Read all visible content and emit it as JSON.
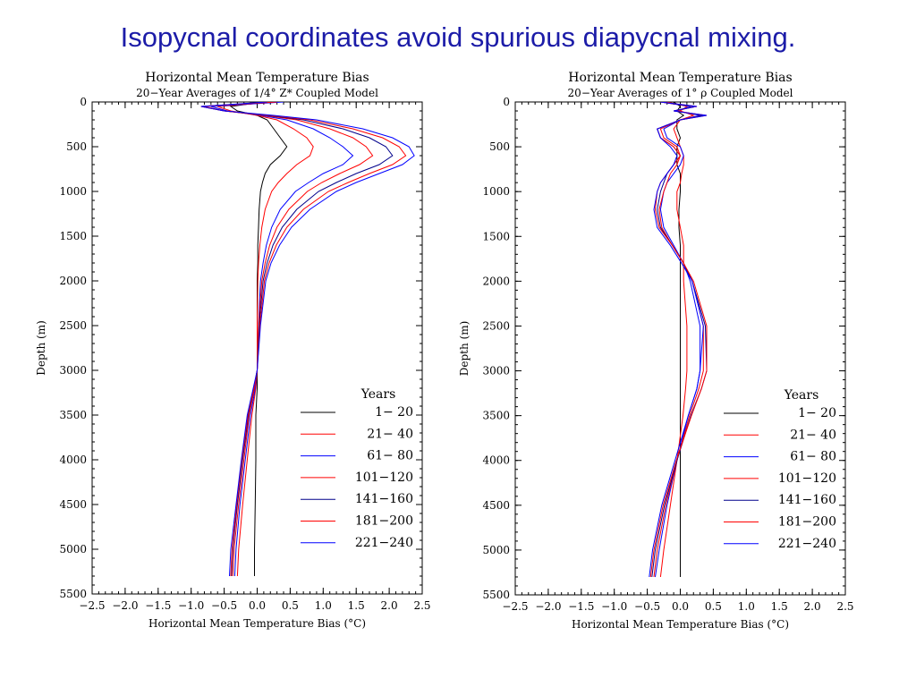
{
  "page": {
    "title": "Isopycnal coordinates avoid spurious diapycnal mixing."
  },
  "chart_data": [
    {
      "type": "line",
      "title": "Horizontal Mean Temperature Bias",
      "subtitle": "20−Year Averages of 1/4° Z* Coupled Model",
      "xlabel": "Horizontal Mean Temperature Bias (°C)",
      "ylabel": "Depth (m)",
      "xlim": [
        -2.5,
        2.5
      ],
      "ylim": [
        5500,
        0
      ],
      "xticks": [
        "−2.5",
        "−2.0",
        "−1.5",
        "−1.0",
        "−0.5",
        "0.0",
        "0.5",
        "1.0",
        "1.5",
        "2.0",
        "2.5"
      ],
      "yticks": [
        "0",
        "500",
        "1000",
        "1500",
        "2000",
        "2500",
        "3000",
        "3500",
        "4000",
        "4500",
        "5000",
        "5500"
      ],
      "legend": {
        "title": "Years",
        "position": "bottom-right"
      },
      "depth": [
        0,
        50,
        100,
        150,
        200,
        300,
        400,
        500,
        600,
        700,
        800,
        900,
        1000,
        1200,
        1400,
        1600,
        1800,
        2000,
        2500,
        3000,
        3200,
        3500,
        4000,
        4500,
        5000,
        5300
      ],
      "series": [
        {
          "name": "1− 20",
          "color": "#000000",
          "values": [
            0.1,
            -0.4,
            -0.3,
            0.0,
            0.15,
            0.25,
            0.35,
            0.45,
            0.35,
            0.2,
            0.12,
            0.08,
            0.05,
            0.03,
            0.02,
            0.01,
            0.01,
            0.0,
            0.0,
            0.0,
            0.0,
            -0.02,
            -0.02,
            -0.03,
            -0.04,
            -0.04
          ]
        },
        {
          "name": "21− 40",
          "color": "#ff0000",
          "values": [
            0.3,
            -0.6,
            -0.4,
            0.0,
            0.3,
            0.55,
            0.75,
            0.85,
            0.8,
            0.6,
            0.45,
            0.32,
            0.22,
            0.12,
            0.07,
            0.04,
            0.02,
            0.01,
            0.0,
            0.0,
            -0.02,
            -0.08,
            -0.15,
            -0.22,
            -0.28,
            -0.3
          ]
        },
        {
          "name": "61− 80",
          "color": "#0000ff",
          "values": [
            0.4,
            -0.7,
            -0.45,
            0.05,
            0.45,
            0.85,
            1.1,
            1.3,
            1.45,
            1.3,
            1.0,
            0.78,
            0.58,
            0.35,
            0.22,
            0.14,
            0.09,
            0.05,
            0.02,
            0.0,
            -0.03,
            -0.1,
            -0.18,
            -0.26,
            -0.32,
            -0.34
          ]
        },
        {
          "name": "101−120",
          "color": "#ff0000",
          "values": [
            0.3,
            -0.8,
            -0.5,
            0.1,
            0.6,
            1.1,
            1.45,
            1.65,
            1.75,
            1.55,
            1.25,
            0.98,
            0.76,
            0.48,
            0.3,
            0.19,
            0.12,
            0.07,
            0.02,
            0.0,
            -0.04,
            -0.12,
            -0.2,
            -0.28,
            -0.35,
            -0.37
          ]
        },
        {
          "name": "141−160",
          "color": "#00008b",
          "values": [
            0.2,
            -0.85,
            -0.5,
            0.15,
            0.7,
            1.3,
            1.7,
            1.95,
            2.05,
            1.85,
            1.5,
            1.2,
            0.93,
            0.6,
            0.38,
            0.24,
            0.15,
            0.09,
            0.03,
            0.0,
            -0.05,
            -0.13,
            -0.22,
            -0.3,
            -0.37,
            -0.39
          ]
        },
        {
          "name": "181−200",
          "color": "#ff0000",
          "values": [
            0.2,
            -0.85,
            -0.5,
            0.2,
            0.8,
            1.45,
            1.9,
            2.15,
            2.25,
            2.05,
            1.7,
            1.38,
            1.08,
            0.7,
            0.45,
            0.29,
            0.18,
            0.11,
            0.04,
            0.0,
            -0.05,
            -0.14,
            -0.23,
            -0.31,
            -0.38,
            -0.4
          ]
        },
        {
          "name": "221−240",
          "color": "#0000ff",
          "values": [
            0.15,
            -0.85,
            -0.5,
            0.25,
            0.9,
            1.6,
            2.05,
            2.3,
            2.38,
            2.2,
            1.85,
            1.5,
            1.2,
            0.8,
            0.52,
            0.34,
            0.21,
            0.13,
            0.05,
            0.0,
            -0.06,
            -0.15,
            -0.24,
            -0.32,
            -0.4,
            -0.42
          ]
        }
      ]
    },
    {
      "type": "line",
      "title": "Horizontal Mean Temperature Bias",
      "subtitle": "20−Year Averages of 1° ρ Coupled Model",
      "xlabel": "Horizontal Mean Temperature Bias (°C)",
      "ylabel": "Depth (m)",
      "xlim": [
        -2.5,
        2.5
      ],
      "ylim": [
        5500,
        0
      ],
      "xticks": [
        "−2.5",
        "−2.0",
        "−1.5",
        "−1.0",
        "−0.5",
        "0.0",
        "0.5",
        "1.0",
        "1.5",
        "2.0",
        "2.5"
      ],
      "yticks": [
        "0",
        "500",
        "1000",
        "1500",
        "2000",
        "2500",
        "3000",
        "3500",
        "4000",
        "4500",
        "5000",
        "5500"
      ],
      "legend": {
        "title": "Years",
        "position": "bottom-right"
      },
      "depth": [
        0,
        50,
        100,
        150,
        200,
        300,
        400,
        500,
        600,
        700,
        800,
        900,
        1000,
        1200,
        1400,
        1600,
        1800,
        2000,
        2500,
        3000,
        3200,
        3500,
        4000,
        4500,
        5000,
        5300
      ],
      "series": [
        {
          "name": "1− 20",
          "color": "#000000",
          "values": [
            -0.1,
            0.0,
            -0.05,
            0.05,
            -0.05,
            -0.05,
            0.0,
            -0.05,
            -0.05,
            -0.05,
            0.0,
            0.0,
            0.0,
            -0.02,
            -0.02,
            0.0,
            0.0,
            0.0,
            0.0,
            0.0,
            0.0,
            0.0,
            0.0,
            0.0,
            0.0,
            0.0
          ]
        },
        {
          "name": "21− 40",
          "color": "#ff0000",
          "values": [
            -0.2,
            0.1,
            0.0,
            0.2,
            0.0,
            -0.1,
            -0.05,
            0.0,
            0.05,
            0.05,
            0.02,
            0.0,
            -0.05,
            -0.05,
            0.0,
            0.05,
            0.05,
            0.05,
            0.1,
            0.1,
            0.08,
            0.04,
            -0.05,
            -0.15,
            -0.25,
            -0.3
          ]
        },
        {
          "name": "61− 80",
          "color": "#0000ff",
          "values": [
            -0.3,
            0.15,
            -0.05,
            0.3,
            0.0,
            -0.25,
            -0.2,
            0.0,
            0.05,
            0.0,
            -0.1,
            -0.2,
            -0.25,
            -0.3,
            -0.25,
            -0.1,
            0.05,
            0.15,
            0.3,
            0.3,
            0.25,
            0.12,
            -0.05,
            -0.2,
            -0.32,
            -0.38
          ]
        },
        {
          "name": "101−120",
          "color": "#ff0000",
          "values": [
            -0.3,
            0.2,
            -0.05,
            0.35,
            0.0,
            -0.3,
            -0.25,
            -0.05,
            0.0,
            -0.05,
            -0.15,
            -0.2,
            -0.25,
            -0.32,
            -0.28,
            -0.12,
            0.05,
            0.18,
            0.35,
            0.35,
            0.28,
            0.14,
            -0.05,
            -0.22,
            -0.35,
            -0.4
          ]
        },
        {
          "name": "141−160",
          "color": "#00008b",
          "values": [
            -0.3,
            0.2,
            -0.1,
            0.35,
            0.0,
            -0.35,
            -0.3,
            -0.1,
            0.0,
            -0.1,
            -0.2,
            -0.25,
            -0.3,
            -0.35,
            -0.3,
            -0.12,
            0.05,
            0.18,
            0.38,
            0.4,
            0.32,
            0.16,
            -0.05,
            -0.24,
            -0.38,
            -0.43
          ]
        },
        {
          "name": "181−200",
          "color": "#ff0000",
          "values": [
            -0.3,
            0.25,
            -0.1,
            0.4,
            0.0,
            -0.35,
            -0.3,
            -0.1,
            0.0,
            -0.1,
            -0.2,
            -0.3,
            -0.35,
            -0.38,
            -0.32,
            -0.12,
            0.05,
            0.2,
            0.4,
            0.4,
            0.32,
            0.17,
            -0.06,
            -0.26,
            -0.4,
            -0.45
          ]
        },
        {
          "name": "221−240",
          "color": "#0000ff",
          "values": [
            -0.3,
            0.25,
            -0.1,
            0.4,
            0.0,
            -0.35,
            -0.3,
            -0.15,
            -0.05,
            -0.1,
            -0.2,
            -0.3,
            -0.35,
            -0.4,
            -0.35,
            -0.15,
            0.02,
            0.18,
            0.35,
            0.3,
            0.25,
            0.12,
            -0.08,
            -0.28,
            -0.42,
            -0.47
          ]
        }
      ]
    }
  ]
}
